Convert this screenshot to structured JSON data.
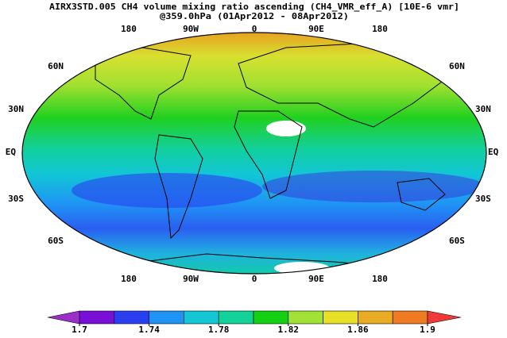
{
  "title": "AIRX3STD.005 CH4 volume mixing ratio ascending (CH4_VMR_eff_A) [10E-6 vmr]",
  "subtitle": "@359.0hPa (01Apr2012 - 08Apr2012)",
  "map": {
    "lon_labels": [
      "180",
      "90W",
      "0",
      "90E",
      "180"
    ],
    "lat_labels": [
      "60N",
      "30N",
      "EQ",
      "30S",
      "60S"
    ]
  },
  "colorbar": {
    "ticks": [
      1.7,
      1.74,
      1.78,
      1.82,
      1.86,
      1.9
    ],
    "colors": [
      "#7a10d8",
      "#2a3ff0",
      "#1f94f5",
      "#12c6d6",
      "#12d29a",
      "#14cf14",
      "#a2e236",
      "#e6e026",
      "#e8ab24",
      "#f07a22"
    ],
    "under_color": "#9a30c8",
    "over_color": "#f03a3a"
  }
}
